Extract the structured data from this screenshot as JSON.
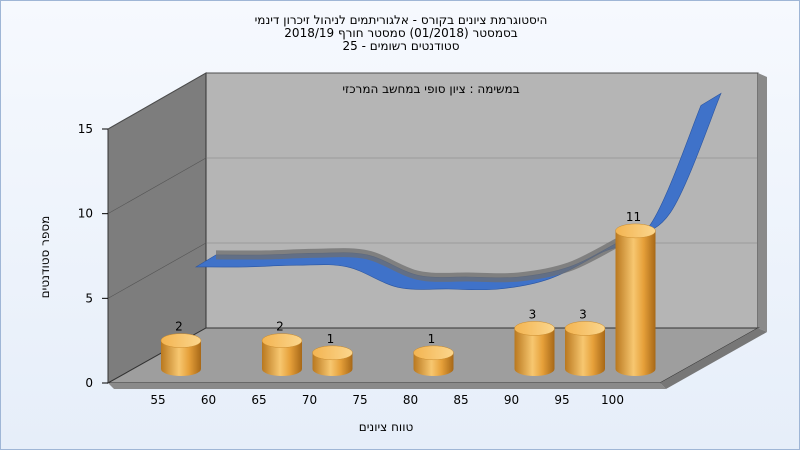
{
  "chart_data": {
    "type": "bar",
    "title_lines": [
      "היסטוגרמת ציונים בקורס - אלגוריתמים לניהול זיכרון דינמי",
      "בסמסטר  (01/2018)  סמסטר חורף 2018/19",
      "סטודנטים רשומים - 25"
    ],
    "subtitle": "במשימה : ציון סופי במחשב המרכזי",
    "xlabel": "טווח ציונים",
    "ylabel": "מספר סטודנטים",
    "x_ticks": [
      "55",
      "60",
      "65",
      "70",
      "75",
      "80",
      "85",
      "90",
      "95",
      "100"
    ],
    "y_ticks": [
      "0",
      "5",
      "10",
      "15"
    ],
    "ylim": [
      0,
      15
    ],
    "bars": [
      {
        "bin": 55,
        "value": 2,
        "label": "2"
      },
      {
        "bin": 65,
        "value": 2,
        "label": "2"
      },
      {
        "bin": 70,
        "value": 1,
        "label": "1"
      },
      {
        "bin": 80,
        "value": 1,
        "label": "1"
      },
      {
        "bin": 90,
        "value": 3,
        "label": "3"
      },
      {
        "bin": 95,
        "value": 3,
        "label": "3"
      },
      {
        "bin": 100,
        "value": 11,
        "label": "11"
      }
    ],
    "curve": [
      {
        "bin": 55,
        "value": 4.3
      },
      {
        "bin": 60,
        "value": 4.3
      },
      {
        "bin": 65,
        "value": 4.4
      },
      {
        "bin": 70,
        "value": 4.3
      },
      {
        "bin": 75,
        "value": 3.1
      },
      {
        "bin": 80,
        "value": 3.0
      },
      {
        "bin": 85,
        "value": 3.0
      },
      {
        "bin": 90,
        "value": 3.6
      },
      {
        "bin": 95,
        "value": 5.1
      },
      {
        "bin": 100,
        "value": 6.8
      },
      {
        "bin": 105,
        "value": 13.8
      }
    ],
    "bar_style": "3d-cylinder",
    "bar_color": "#e8a23a",
    "curve_color": "#3f72c9",
    "wall_color": "#7f7f7f",
    "back_wall_color": "#b3b3b3",
    "grid": true
  }
}
